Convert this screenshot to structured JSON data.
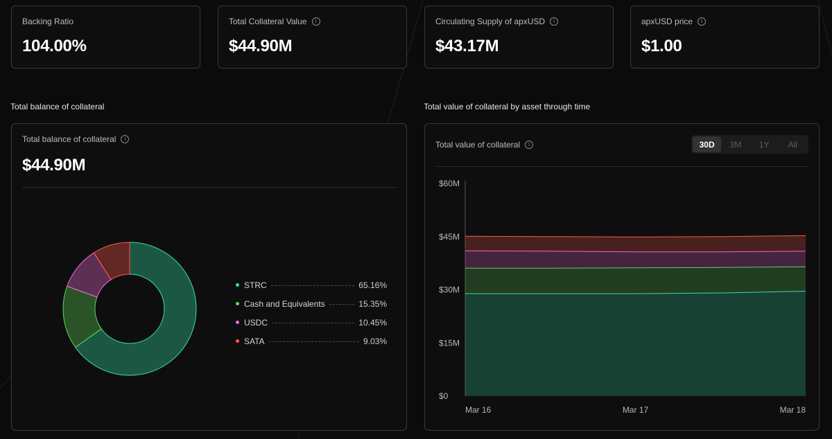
{
  "stats": [
    {
      "label": "Backing Ratio",
      "value": "104.00%",
      "info": false
    },
    {
      "label": "Total Collateral Value",
      "value": "$44.90M",
      "info": true
    },
    {
      "label": "Circulating Supply of apxUSD",
      "value": "$43.17M",
      "info": true
    },
    {
      "label": "apxUSD price",
      "value": "$1.00",
      "info": true
    }
  ],
  "left_section": {
    "title": "Total balance of collateral",
    "card_label": "Total balance of collateral",
    "card_value": "$44.90M"
  },
  "right_section": {
    "title": "Total value of collateral by asset through time",
    "card_label": "Total value of collateral",
    "ranges": [
      "30D",
      "3M",
      "1Y",
      "All"
    ],
    "active_range": "30D"
  },
  "info_glyph": "i",
  "chart_data": [
    {
      "type": "pie",
      "title": "Total balance of collateral",
      "categories": [
        "STRC",
        "Cash and Equivalents",
        "USDC",
        "SATA"
      ],
      "values": [
        65.16,
        15.35,
        10.45,
        9.03
      ],
      "labels": [
        "65.16%",
        "15.35%",
        "10.45%",
        "9.03%"
      ],
      "colors": [
        "#37e0a8",
        "#5fd65a",
        "#ee6ed4",
        "#ff5a4a"
      ]
    },
    {
      "type": "area",
      "title": "Total value of collateral",
      "x": [
        "Mar 16",
        "Mar 16.5",
        "Mar 17",
        "Mar 17.5",
        "Mar 18"
      ],
      "xticks": [
        "Mar 16",
        "Mar 17",
        "Mar 18"
      ],
      "ylim": [
        0,
        60
      ],
      "yticks": [
        "$0",
        "$15M",
        "$30M",
        "$45M",
        "$60M"
      ],
      "ytick_values": [
        0,
        15,
        30,
        45,
        60
      ],
      "stacked": true,
      "series": [
        {
          "name": "STRC",
          "values": [
            28.9,
            28.9,
            28.9,
            29.1,
            29.6
          ],
          "color": "#37e0a8"
        },
        {
          "name": "Cash and Equivalents",
          "values": [
            7.2,
            7.2,
            7.3,
            7.2,
            6.9
          ],
          "color": "#5fd65a"
        },
        {
          "name": "USDC",
          "values": [
            4.9,
            4.8,
            4.5,
            4.4,
            4.4
          ],
          "color": "#ee6ed4"
        },
        {
          "name": "SATA",
          "values": [
            4.1,
            4.1,
            4.2,
            4.3,
            4.4
          ],
          "color": "#ff5a4a"
        }
      ]
    }
  ]
}
